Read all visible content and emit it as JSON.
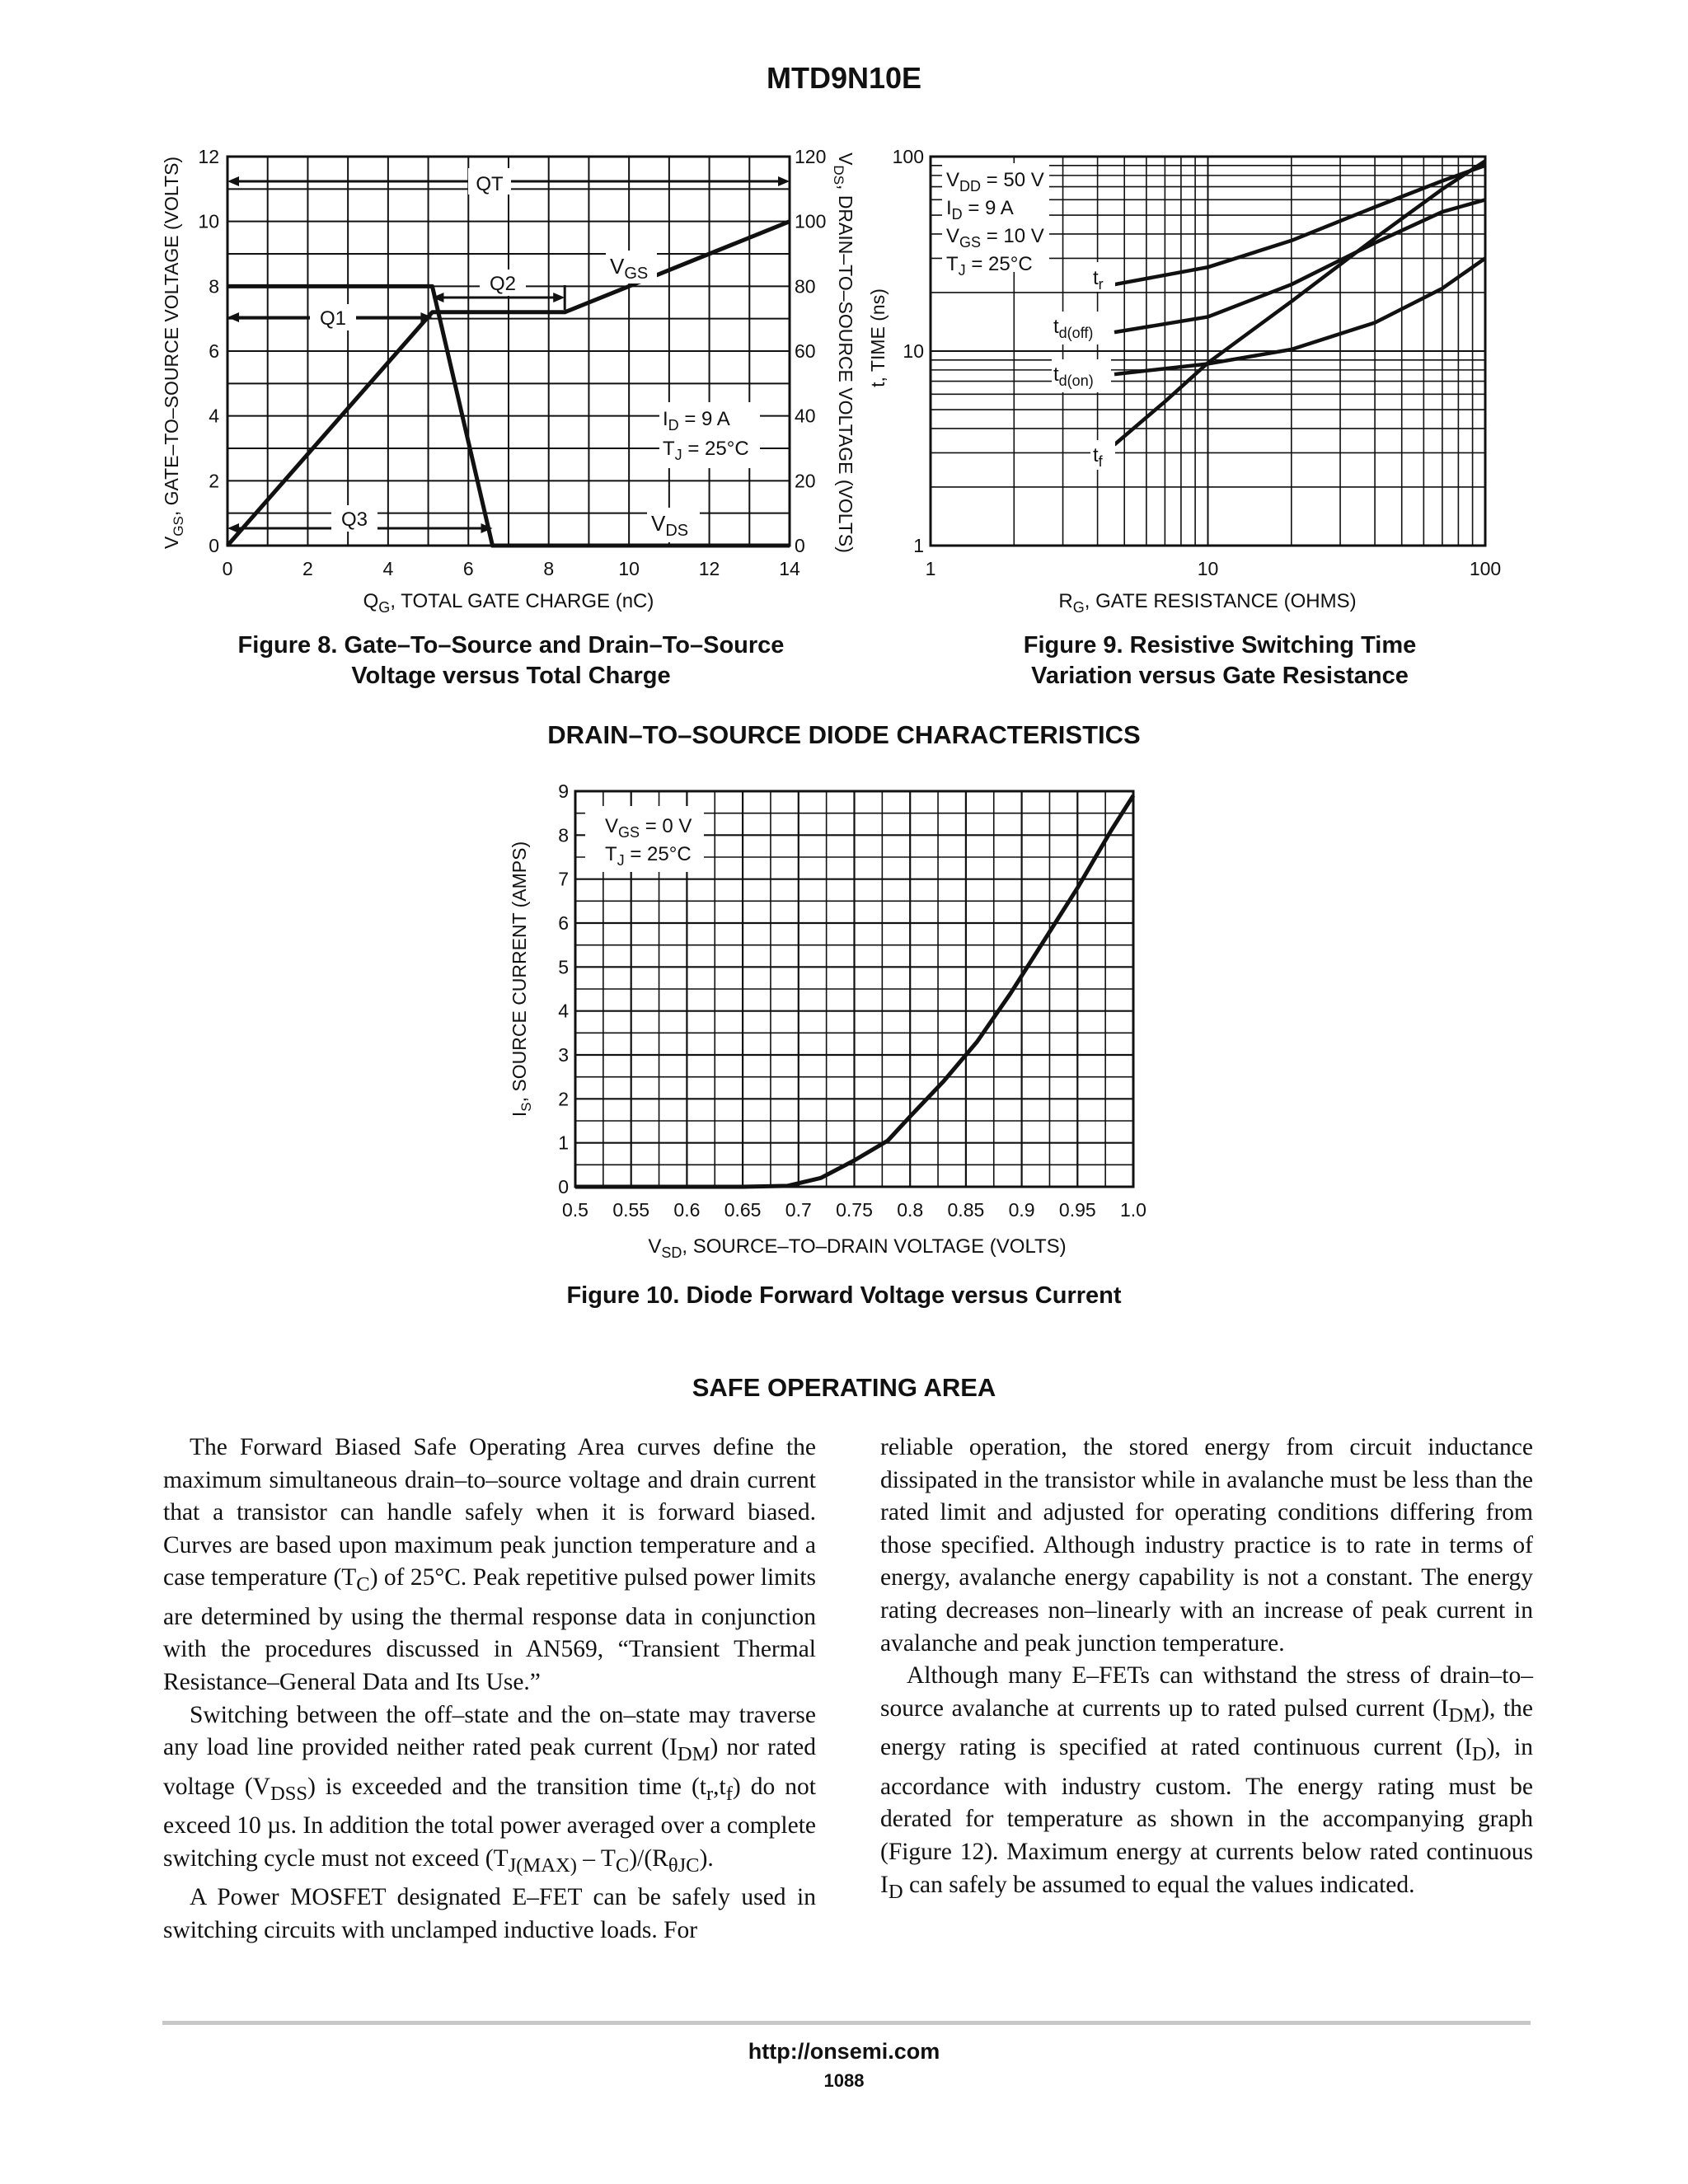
{
  "header": {
    "part_number": "MTD9N10E"
  },
  "fig8": {
    "caption_line1": "Figure 8. Gate–To–Source and Drain–To–Source",
    "caption_line2": "Voltage versus Total Charge",
    "xlabel_main": "Q",
    "xlabel_sub": "G",
    "xlabel_rest": ", TOTAL GATE CHARGE (nC)",
    "ylabel_left_main": "V",
    "ylabel_left_sub": "GS",
    "ylabel_left_rest": ", GATE–TO–SOURCE VOLTAGE (VOLTS)",
    "ylabel_right_main": "V",
    "ylabel_right_sub": "DS",
    "ylabel_right_rest": ", DRAIN–TO–SOURCE VOLTAGE (VOLTS)",
    "labels": {
      "qt": "QT",
      "q1": "Q1",
      "q2": "Q2",
      "q3": "Q3",
      "vgs_main": "V",
      "vgs_sub": "GS",
      "vds_main": "V",
      "vds_sub": "DS",
      "cond1_main": "I",
      "cond1_sub": "D",
      "cond1_rest": " =  9 A",
      "cond2_main": "T",
      "cond2_sub": "J",
      "cond2_rest": " = 25°C"
    }
  },
  "fig9": {
    "caption_line1": "Figure 9. Resistive Switching Time",
    "caption_line2": "Variation versus Gate Resistance",
    "xlabel_main": "R",
    "xlabel_sub": "G",
    "xlabel_rest": ", GATE RESISTANCE (OHMS)",
    "ylabel": "t, TIME (ns)",
    "conditions": [
      {
        "main": "V",
        "sub": "DD",
        "rest": " = 50 V"
      },
      {
        "main": "I",
        "sub": "D",
        "rest": " = 9 A"
      },
      {
        "main": "V",
        "sub": "GS",
        "rest": " = 10 V"
      },
      {
        "main": "T",
        "sub": "J",
        "rest": " = 25°C"
      }
    ],
    "curve_labels": {
      "tr_main": "t",
      "tr_sub": "r",
      "tdoff_main": "t",
      "tdoff_sub": "d(off)",
      "tdon_main": "t",
      "tdon_sub": "d(on)",
      "tf_main": "t",
      "tf_sub": "f"
    }
  },
  "section_diode": "DRAIN–TO–SOURCE DIODE CHARACTERISTICS",
  "fig10": {
    "caption": "Figure 10. Diode Forward Voltage versus Current",
    "xlabel_main": "V",
    "xlabel_sub": "SD",
    "xlabel_rest": ", SOURCE–TO–DRAIN VOLTAGE (VOLTS)",
    "ylabel_main": "I",
    "ylabel_sub": "S",
    "ylabel_rest": ", SOURCE CURRENT (AMPS)",
    "cond1_main": "V",
    "cond1_sub": "GS",
    "cond1_rest": " = 0 V",
    "cond2_main": "T",
    "cond2_sub": "J",
    "cond2_rest": " = 25°C"
  },
  "chart_data": [
    {
      "type": "line",
      "x_ticks": [
        "0",
        "2",
        "4",
        "6",
        "8",
        "10",
        "12",
        "14"
      ],
      "y_ticks_left": [
        "0",
        "2",
        "4",
        "6",
        "8",
        "10",
        "12"
      ],
      "y_ticks_right": [
        "0",
        "20",
        "40",
        "60",
        "80",
        "100",
        "120"
      ],
      "xlim": [
        0,
        14
      ],
      "ylim_left": [
        0,
        12
      ],
      "ylim_right": [
        0,
        120
      ],
      "grid": true,
      "series": [
        {
          "name": "VGS",
          "axis": "left",
          "x": [
            0,
            5.1,
            8.4,
            14
          ],
          "y": [
            0,
            7.2,
            7.2,
            10
          ]
        },
        {
          "name": "VDS",
          "axis": "right",
          "x": [
            0,
            5.1,
            6.6,
            14
          ],
          "y": [
            80,
            80,
            0,
            0
          ]
        }
      ],
      "dimension_arrows": {
        "QT": [
          0,
          14
        ],
        "Q1": [
          0,
          5.1
        ],
        "Q2": [
          5.1,
          8.4
        ],
        "Q3": [
          0,
          6.6
        ]
      }
    },
    {
      "type": "line",
      "x_scale": "log",
      "y_scale": "log",
      "x_ticks": [
        "1",
        "10",
        "100"
      ],
      "y_ticks": [
        "1",
        "10",
        "100"
      ],
      "xlim": [
        1,
        100
      ],
      "ylim": [
        1,
        100
      ],
      "grid": true,
      "series": [
        {
          "name": "tr",
          "x": [
            4.6,
            10,
            20,
            40,
            70,
            100
          ],
          "y": [
            22,
            27,
            37,
            55,
            75,
            90
          ]
        },
        {
          "name": "td(off)",
          "x": [
            4.6,
            10,
            20,
            40,
            70,
            100
          ],
          "y": [
            12.5,
            15,
            22,
            36,
            52,
            60
          ]
        },
        {
          "name": "td(on)",
          "x": [
            4.6,
            10,
            20,
            40,
            70,
            100
          ],
          "y": [
            7.6,
            8.6,
            10.2,
            14,
            21,
            30
          ]
        },
        {
          "name": "tf",
          "x": [
            4.6,
            7,
            10,
            20,
            40,
            70,
            100
          ],
          "y": [
            3.3,
            5.5,
            8.7,
            18,
            38,
            68,
            95
          ]
        }
      ]
    },
    {
      "type": "line",
      "x_ticks": [
        "0.5",
        "0.55",
        "0.6",
        "0.65",
        "0.7",
        "0.75",
        "0.8",
        "0.85",
        "0.9",
        "0.95",
        "1.0"
      ],
      "y_ticks": [
        "0",
        "1",
        "2",
        "3",
        "4",
        "5",
        "6",
        "7",
        "8",
        "9"
      ],
      "xlim": [
        0.5,
        1.0
      ],
      "ylim": [
        0,
        9
      ],
      "grid": true,
      "series": [
        {
          "name": "IS",
          "x": [
            0.5,
            0.6,
            0.65,
            0.69,
            0.72,
            0.75,
            0.78,
            0.8,
            0.83,
            0.86,
            0.89,
            0.92,
            0.95,
            0.98,
            1.0
          ],
          "y": [
            0,
            0,
            0,
            0.02,
            0.2,
            0.6,
            1.05,
            1.6,
            2.4,
            3.3,
            4.4,
            5.6,
            6.8,
            8.1,
            8.9
          ]
        }
      ]
    }
  ],
  "section_soa": "SAFE OPERATING AREA",
  "soa_left": {
    "p1": "The Forward Biased Safe Operating Area curves define the maximum simultaneous drain–to–source voltage and drain current that a transistor can handle safely when it is forward biased. Curves are based upon maximum peak junction temperature and a case temperature (T",
    "p1_sub": "C",
    "p1_rest": ") of 25°C. Peak repetitive pulsed power limits are determined by using the thermal response data in conjunction with the procedures discussed in AN569, “Transient Thermal Resistance–General Data and Its Use.”",
    "p2a": "Switching between the off–state and the on–state may traverse any load line provided neither rated peak current (I",
    "p2_sub1": "DM",
    "p2b": ") nor rated voltage (V",
    "p2_sub2": "DSS",
    "p2c": ") is exceeded and the transition time (t",
    "p2_sub3": "r",
    "p2d": ",t",
    "p2_sub4": "f",
    "p2e": ") do not exceed 10 µs. In addition the total power averaged over a complete switching cycle must not exceed (T",
    "p2_sub5": "J(MAX)",
    "p2f": " – T",
    "p2_sub6": "C",
    "p2g": ")/(R",
    "p2_sub7": "θJC",
    "p2h": ").",
    "p3": "A Power MOSFET designated E–FET can be safely used in switching circuits with unclamped inductive loads. For"
  },
  "soa_right": {
    "p1": "reliable operation, the stored energy from circuit inductance dissipated in the transistor while in avalanche must be less than the rated limit and adjusted for operating conditions differing from those specified. Although industry practice is to rate in terms of energy, avalanche energy capability is not a constant. The energy rating decreases non–linearly with an increase of peak current in avalanche and peak junction temperature.",
    "p2a": "Although many E–FETs can withstand the stress of drain–to–source avalanche at currents up to rated pulsed current (I",
    "p2_sub1": "DM",
    "p2b": "), the energy rating is specified at rated continuous current (I",
    "p2_sub2": "D",
    "p2c": "), in accordance with industry custom. The energy rating must be derated for temperature as shown in the accompanying graph (Figure 12). Maximum energy at currents below rated continuous I",
    "p2_sub3": "D",
    "p2d": " can safely be assumed to equal the values indicated."
  },
  "footer": {
    "url": "http://onsemi.com",
    "page": "1088"
  }
}
